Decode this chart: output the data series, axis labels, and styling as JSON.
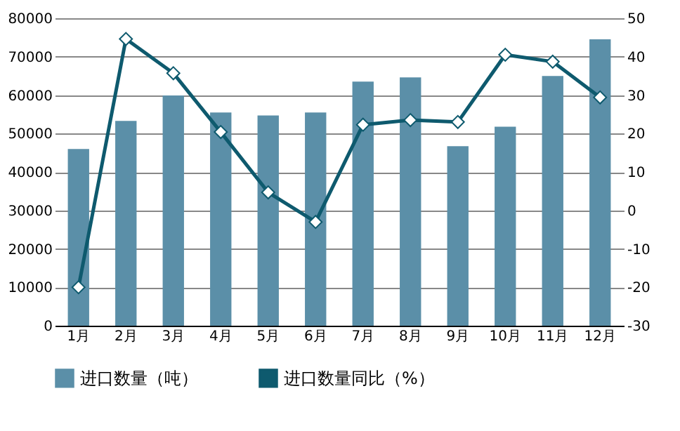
{
  "chart_data": {
    "type": "bar",
    "categories": [
      "1月",
      "2月",
      "3月",
      "4月",
      "5月",
      "6月",
      "7月",
      "8月",
      "9月",
      "10月",
      "11月",
      "12月"
    ],
    "series": [
      {
        "name": "进口数量（吨）",
        "color": "#5b8fa8",
        "values": [
          46000,
          53300,
          59900,
          55500,
          54700,
          55500,
          63500,
          64600,
          46700,
          51800,
          65000,
          74500
        ]
      },
      {
        "name": "进口数量同比（%）",
        "type": "line",
        "axis": "y2",
        "color": "#0e5a6e",
        "marker": "diamond",
        "values": [
          -20,
          44.6,
          35.7,
          20.4,
          4.7,
          -3,
          22.3,
          23.5,
          23,
          40.5,
          38.7,
          29.4
        ]
      }
    ],
    "ylim": [
      0,
      80000
    ],
    "yticks": [
      0,
      10000,
      20000,
      30000,
      40000,
      50000,
      60000,
      70000,
      80000
    ],
    "y2lim": [
      -30,
      50
    ],
    "y2ticks": [
      -30,
      -20,
      -10,
      0,
      10,
      20,
      30,
      40,
      50
    ],
    "grid": "y",
    "legend": "bottom"
  }
}
